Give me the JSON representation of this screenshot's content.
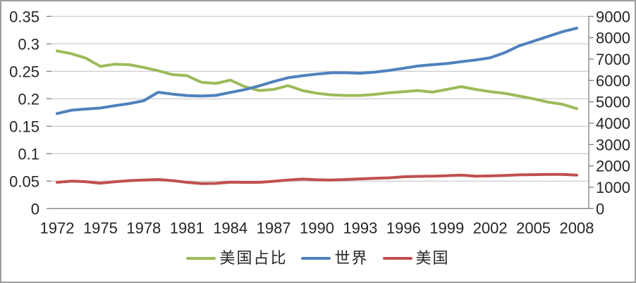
{
  "chart_data": {
    "type": "line",
    "title": "",
    "xlabel": "",
    "ylabel_left": "",
    "ylabel_right": "",
    "grid": true,
    "legend_position": "bottom",
    "x": [
      1972,
      1973,
      1974,
      1975,
      1976,
      1977,
      1978,
      1979,
      1980,
      1981,
      1982,
      1983,
      1984,
      1985,
      1986,
      1987,
      1988,
      1989,
      1990,
      1991,
      1992,
      1993,
      1994,
      1995,
      1996,
      1997,
      1998,
      1999,
      2000,
      2001,
      2002,
      2003,
      2004,
      2005,
      2006,
      2007,
      2008
    ],
    "x_tick_labels": [
      "1972",
      "1975",
      "1978",
      "1981",
      "1984",
      "1987",
      "1990",
      "1993",
      "1996",
      "1999",
      "2002",
      "2005",
      "2008"
    ],
    "left_axis": {
      "min": 0,
      "max": 0.35,
      "step": 0.05,
      "tick_labels": [
        "0",
        "0.05",
        "0.1",
        "0.15",
        "0.2",
        "0.25",
        "0.3",
        "0.35"
      ]
    },
    "right_axis": {
      "min": 0,
      "max": 9000,
      "step": 1000,
      "tick_labels": [
        "0",
        "1000",
        "2000",
        "3000",
        "4000",
        "5000",
        "6000",
        "7000",
        "8000",
        "9000"
      ]
    },
    "series": [
      {
        "name": "美国占比",
        "slug": "us-share",
        "axis": "left",
        "color": "#9BBB59",
        "values": [
          0.287,
          0.282,
          0.274,
          0.259,
          0.263,
          0.262,
          0.257,
          0.251,
          0.244,
          0.242,
          0.23,
          0.228,
          0.234,
          0.222,
          0.215,
          0.217,
          0.224,
          0.215,
          0.21,
          0.207,
          0.206,
          0.206,
          0.208,
          0.211,
          0.213,
          0.215,
          0.212,
          0.217,
          0.222,
          0.217,
          0.213,
          0.21,
          0.205,
          0.2,
          0.194,
          0.19,
          0.182
        ]
      },
      {
        "name": "世界",
        "slug": "world",
        "axis": "right",
        "color": "#4F81BD",
        "values": [
          4450,
          4610,
          4660,
          4710,
          4820,
          4920,
          5050,
          5450,
          5360,
          5290,
          5270,
          5300,
          5440,
          5570,
          5750,
          5950,
          6130,
          6220,
          6300,
          6360,
          6360,
          6340,
          6390,
          6470,
          6570,
          6680,
          6740,
          6790,
          6880,
          6960,
          7060,
          7300,
          7620,
          7840,
          8060,
          8280,
          8450
        ]
      },
      {
        "name": "美国",
        "slug": "us",
        "axis": "right",
        "color": "#C0504D",
        "values": [
          1230,
          1290,
          1260,
          1190,
          1260,
          1310,
          1340,
          1360,
          1310,
          1230,
          1170,
          1180,
          1240,
          1230,
          1230,
          1280,
          1340,
          1380,
          1350,
          1340,
          1360,
          1390,
          1420,
          1440,
          1490,
          1510,
          1520,
          1540,
          1570,
          1520,
          1530,
          1550,
          1580,
          1590,
          1600,
          1600,
          1570
        ]
      }
    ],
    "colors": {
      "gridline": "#BFBFBF",
      "axis": "#7f7f7f",
      "text": "#262626"
    }
  }
}
